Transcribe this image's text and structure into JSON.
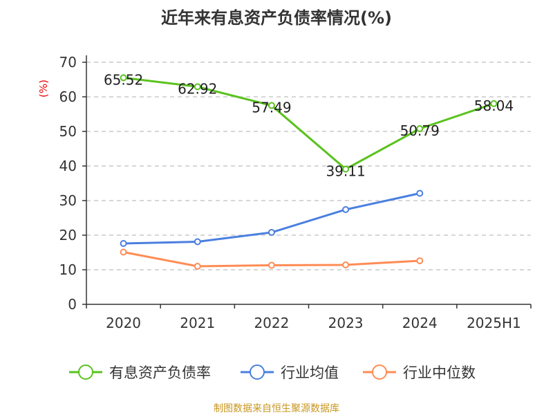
{
  "chart_data": {
    "type": "line",
    "title": "近年来有息资产负债率情况(%)",
    "ylabel": "(%)",
    "xlabel": "",
    "ylim": [
      0,
      70
    ],
    "yticks": [
      0,
      10,
      20,
      30,
      40,
      50,
      60,
      70
    ],
    "grid": true,
    "legend_position": "bottom",
    "categories": [
      "2020",
      "2021",
      "2022",
      "2023",
      "2024",
      "2025H1"
    ],
    "series": [
      {
        "name": "有息资产负债率",
        "color": "#5ac21e",
        "values": [
          65.52,
          62.92,
          57.49,
          39.11,
          50.79,
          58.04
        ],
        "labels": [
          "65.52",
          "62.92",
          "57.49",
          "39.11",
          "50.79",
          "58.04"
        ]
      },
      {
        "name": "行业均值",
        "color": "#4a7fe0",
        "values": [
          17.6,
          18.1,
          20.8,
          27.4,
          32.1,
          null
        ]
      },
      {
        "name": "行业中位数",
        "color": "#ff8c55",
        "values": [
          15.1,
          11.0,
          11.3,
          11.4,
          12.6,
          null
        ]
      }
    ],
    "source": "制图数据来自恒生聚源数据库"
  }
}
